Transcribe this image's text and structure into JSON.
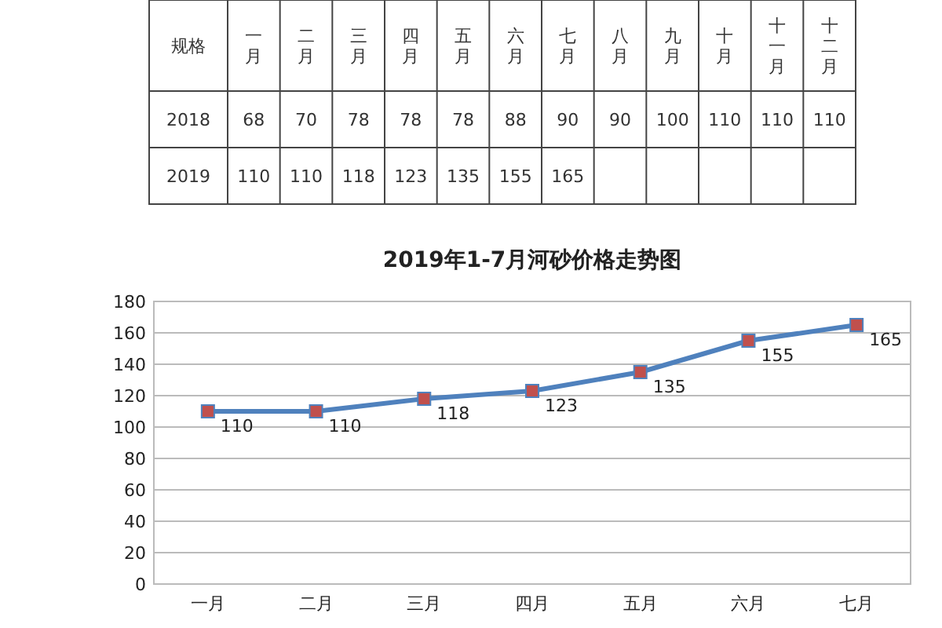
{
  "chart_data": [
    {
      "type": "heatmap",
      "ylabel": "规格",
      "data_labels": true,
      "categories": [
        "一月",
        "二月",
        "三月",
        "四月",
        "五月",
        "六月",
        "七月",
        "八月",
        "九月",
        "十月",
        "十一月",
        "十二月"
      ],
      "y_categories": [
        "2018",
        "2019"
      ],
      "cells": [
        [
          68,
          70,
          78,
          78,
          78,
          88,
          90,
          90,
          100,
          110,
          110,
          110
        ],
        [
          110,
          110,
          118,
          123,
          135,
          155,
          165,
          null,
          null,
          null,
          null,
          null
        ]
      ]
    },
    {
      "type": "line",
      "title": "2019年1-7月河砂价格走势图",
      "categories": [
        "一月",
        "二月",
        "三月",
        "四月",
        "五月",
        "六月",
        "七月"
      ],
      "series": [
        {
          "color": "#4f81bd",
          "values": [
            110,
            110,
            118,
            123,
            135,
            155,
            165
          ]
        }
      ],
      "ylim": [
        0,
        180
      ],
      "yticks": [
        0,
        20,
        40,
        60,
        80,
        100,
        120,
        140,
        160,
        180
      ],
      "grid": "y",
      "marker": "square",
      "data_labels": true
    }
  ]
}
